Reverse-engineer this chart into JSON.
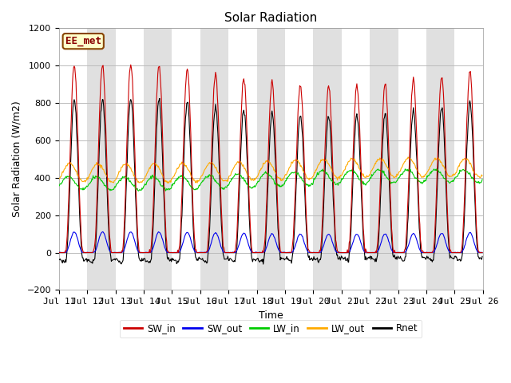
{
  "title": "Solar Radiation",
  "xlabel": "Time",
  "ylabel": "Solar Radiation (W/m2)",
  "ylim": [
    -200,
    1200
  ],
  "yticks": [
    -200,
    0,
    200,
    400,
    600,
    800,
    1000,
    1200
  ],
  "start_day": 11,
  "end_day": 26,
  "n_days": 15,
  "hours_per_day": 24,
  "colors": {
    "SW_in": "#cc0000",
    "SW_out": "#0000ee",
    "LW_in": "#00cc00",
    "LW_out": "#ffaa00",
    "Rnet": "#000000"
  },
  "legend_labels": [
    "SW_in",
    "SW_out",
    "LW_in",
    "LW_out",
    "Rnet"
  ],
  "station_label": "EE_met",
  "station_box_facecolor": "#ffffcc",
  "station_box_edgecolor": "#884400",
  "bg_color": "#ffffff",
  "alt_band_color": "#e0e0e0",
  "grid_color": "#bbbbbb",
  "title_fontsize": 11,
  "label_fontsize": 9,
  "tick_fontsize": 8
}
